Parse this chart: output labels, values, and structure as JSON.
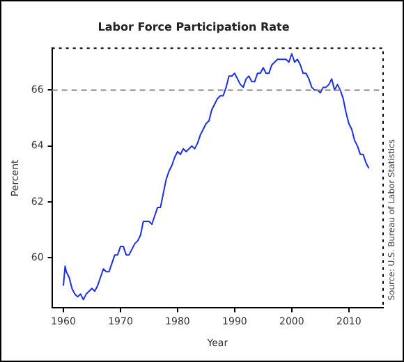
{
  "chart_data": {
    "type": "line",
    "title": "Labor Force Participation Rate",
    "xlabel": "Year",
    "ylabel": "Percent",
    "annotations": [
      "Source: U.S. Bureau of Labor Statistics"
    ],
    "x": [
      1960.0,
      1960.3,
      1960.5,
      1961,
      1961.5,
      1962,
      1962.5,
      1963,
      1963.5,
      1964,
      1964.5,
      1965,
      1965.5,
      1966,
      1966.5,
      1967,
      1967.5,
      1968,
      1968.5,
      1969,
      1969.5,
      1970,
      1970.5,
      1971,
      1971.5,
      1972,
      1972.5,
      1973,
      1973.5,
      1974,
      1974.5,
      1975,
      1975.5,
      1976,
      1976.5,
      1977,
      1977.5,
      1978,
      1978.5,
      1979,
      1979.5,
      1980,
      1980.5,
      1981,
      1981.5,
      1982,
      1982.5,
      1983,
      1983.5,
      1984,
      1984.5,
      1985,
      1985.5,
      1986,
      1986.5,
      1987,
      1987.5,
      1988,
      1988.5,
      1989,
      1989.5,
      1990,
      1990.5,
      1991,
      1991.5,
      1992,
      1992.5,
      1993,
      1993.5,
      1994,
      1994.5,
      1995,
      1995.5,
      1996,
      1996.5,
      1997,
      1997.5,
      1998,
      1998.5,
      1999,
      1999.5,
      2000,
      2000.5,
      2001,
      2001.5,
      2002,
      2002.5,
      2003,
      2003.5,
      2004,
      2004.5,
      2005,
      2005.5,
      2006,
      2006.5,
      2007,
      2007.5,
      2008,
      2008.5,
      2009,
      2009.5,
      2010,
      2010.5,
      2011,
      2011.5,
      2012,
      2012.5,
      2013,
      2013.5
    ],
    "series": [
      {
        "color": "#1a2fe0",
        "values": [
          59.0,
          59.7,
          59.5,
          59.3,
          58.9,
          58.7,
          58.6,
          58.7,
          58.5,
          58.7,
          58.8,
          58.9,
          58.8,
          59.0,
          59.3,
          59.6,
          59.5,
          59.5,
          59.8,
          60.1,
          60.1,
          60.4,
          60.4,
          60.1,
          60.1,
          60.3,
          60.5,
          60.6,
          60.8,
          61.3,
          61.3,
          61.3,
          61.2,
          61.5,
          61.8,
          61.8,
          62.3,
          62.8,
          63.1,
          63.3,
          63.6,
          63.8,
          63.7,
          63.9,
          63.8,
          63.9,
          64.0,
          63.9,
          64.1,
          64.4,
          64.6,
          64.8,
          64.9,
          65.3,
          65.5,
          65.7,
          65.8,
          65.8,
          66.1,
          66.5,
          66.5,
          66.6,
          66.4,
          66.2,
          66.1,
          66.4,
          66.5,
          66.3,
          66.3,
          66.6,
          66.6,
          66.8,
          66.6,
          66.6,
          66.9,
          67.0,
          67.1,
          67.1,
          67.1,
          67.1,
          67.0,
          67.3,
          67.0,
          67.1,
          66.9,
          66.6,
          66.6,
          66.4,
          66.1,
          66.0,
          66.0,
          65.9,
          66.1,
          66.1,
          66.2,
          66.4,
          66.0,
          66.2,
          66.0,
          65.7,
          65.2,
          64.8,
          64.6,
          64.2,
          64.0,
          63.7,
          63.7,
          63.4,
          63.2
        ]
      }
    ],
    "xlim": [
      1958,
      2016
    ],
    "xticks": [
      1960,
      1970,
      1980,
      1990,
      2000,
      2010
    ],
    "ylim": [
      58.2,
      67.5
    ],
    "yticks": [
      60,
      62,
      64,
      66
    ],
    "ref_lines": [
      {
        "axis": "y",
        "value": 66,
        "color": "#888888",
        "line_style": "dashed"
      }
    ],
    "grid": false,
    "legend": false,
    "marker": "none",
    "line_style": "solid"
  }
}
